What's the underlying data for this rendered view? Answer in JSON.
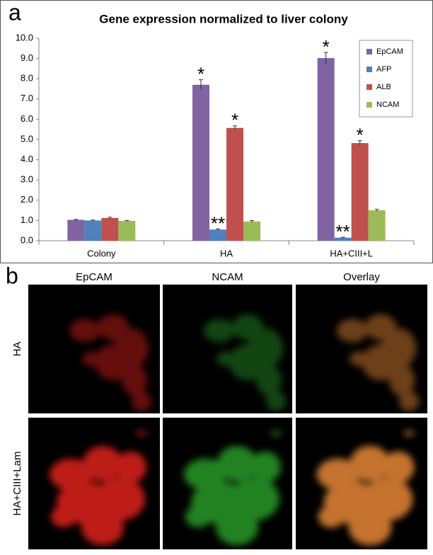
{
  "chart_data": {
    "type": "bar",
    "panel_label": "a",
    "title": "Gene expression normalized to liver colony",
    "categories": [
      "Colony",
      "HA",
      "HA+CIII+L"
    ],
    "series": [
      {
        "name": "EpCAM",
        "color": "#8064a2",
        "values": [
          1.03,
          7.7,
          9.02
        ],
        "errors": [
          0.02,
          0.25,
          0.28
        ]
      },
      {
        "name": "AFP",
        "color": "#4f81bd",
        "values": [
          1.0,
          0.55,
          0.15
        ],
        "errors": [
          0.02,
          0.03,
          0.02
        ]
      },
      {
        "name": "ALB",
        "color": "#c0504d",
        "values": [
          1.12,
          5.57,
          4.82
        ],
        "errors": [
          0.04,
          0.1,
          0.12
        ]
      },
      {
        "name": "NCAM",
        "color": "#9bbb59",
        "values": [
          0.98,
          0.95,
          1.5
        ],
        "errors": [
          0.02,
          0.05,
          0.05
        ]
      }
    ],
    "ylim": [
      0,
      10
    ],
    "yticks": [
      {
        "value": 0,
        "label": "0.0"
      },
      {
        "value": 1,
        "label": "1.0"
      },
      {
        "value": 2,
        "label": "2.0"
      },
      {
        "value": 3,
        "label": "3.0"
      },
      {
        "value": 4,
        "label": "4.0"
      },
      {
        "value": 5,
        "label": "5.0"
      },
      {
        "value": 6,
        "label": "6.0"
      },
      {
        "value": 7,
        "label": "7.0"
      },
      {
        "value": 8,
        "label": "8.0"
      },
      {
        "value": 9,
        "label": "9.0"
      },
      {
        "value": 10,
        "label": "10.0"
      }
    ],
    "grid": false,
    "legend": "upper right",
    "annotations": [
      {
        "text": "*",
        "series": "EpCAM",
        "category": "HA"
      },
      {
        "text": "**",
        "series": "AFP",
        "category": "HA"
      },
      {
        "text": "*",
        "series": "ALB",
        "category": "HA"
      },
      {
        "text": "*",
        "series": "EpCAM",
        "category": "HA+CIII+L"
      },
      {
        "text": "**",
        "series": "AFP",
        "category": "HA+CIII+L"
      },
      {
        "text": "*",
        "series": "ALB",
        "category": "HA+CIII+L"
      }
    ]
  },
  "panel_b": {
    "label": "b",
    "columns": [
      "EpCAM",
      "NCAM",
      "Overlay"
    ],
    "rows": [
      "HA",
      "HA+CIII+Lam"
    ]
  }
}
